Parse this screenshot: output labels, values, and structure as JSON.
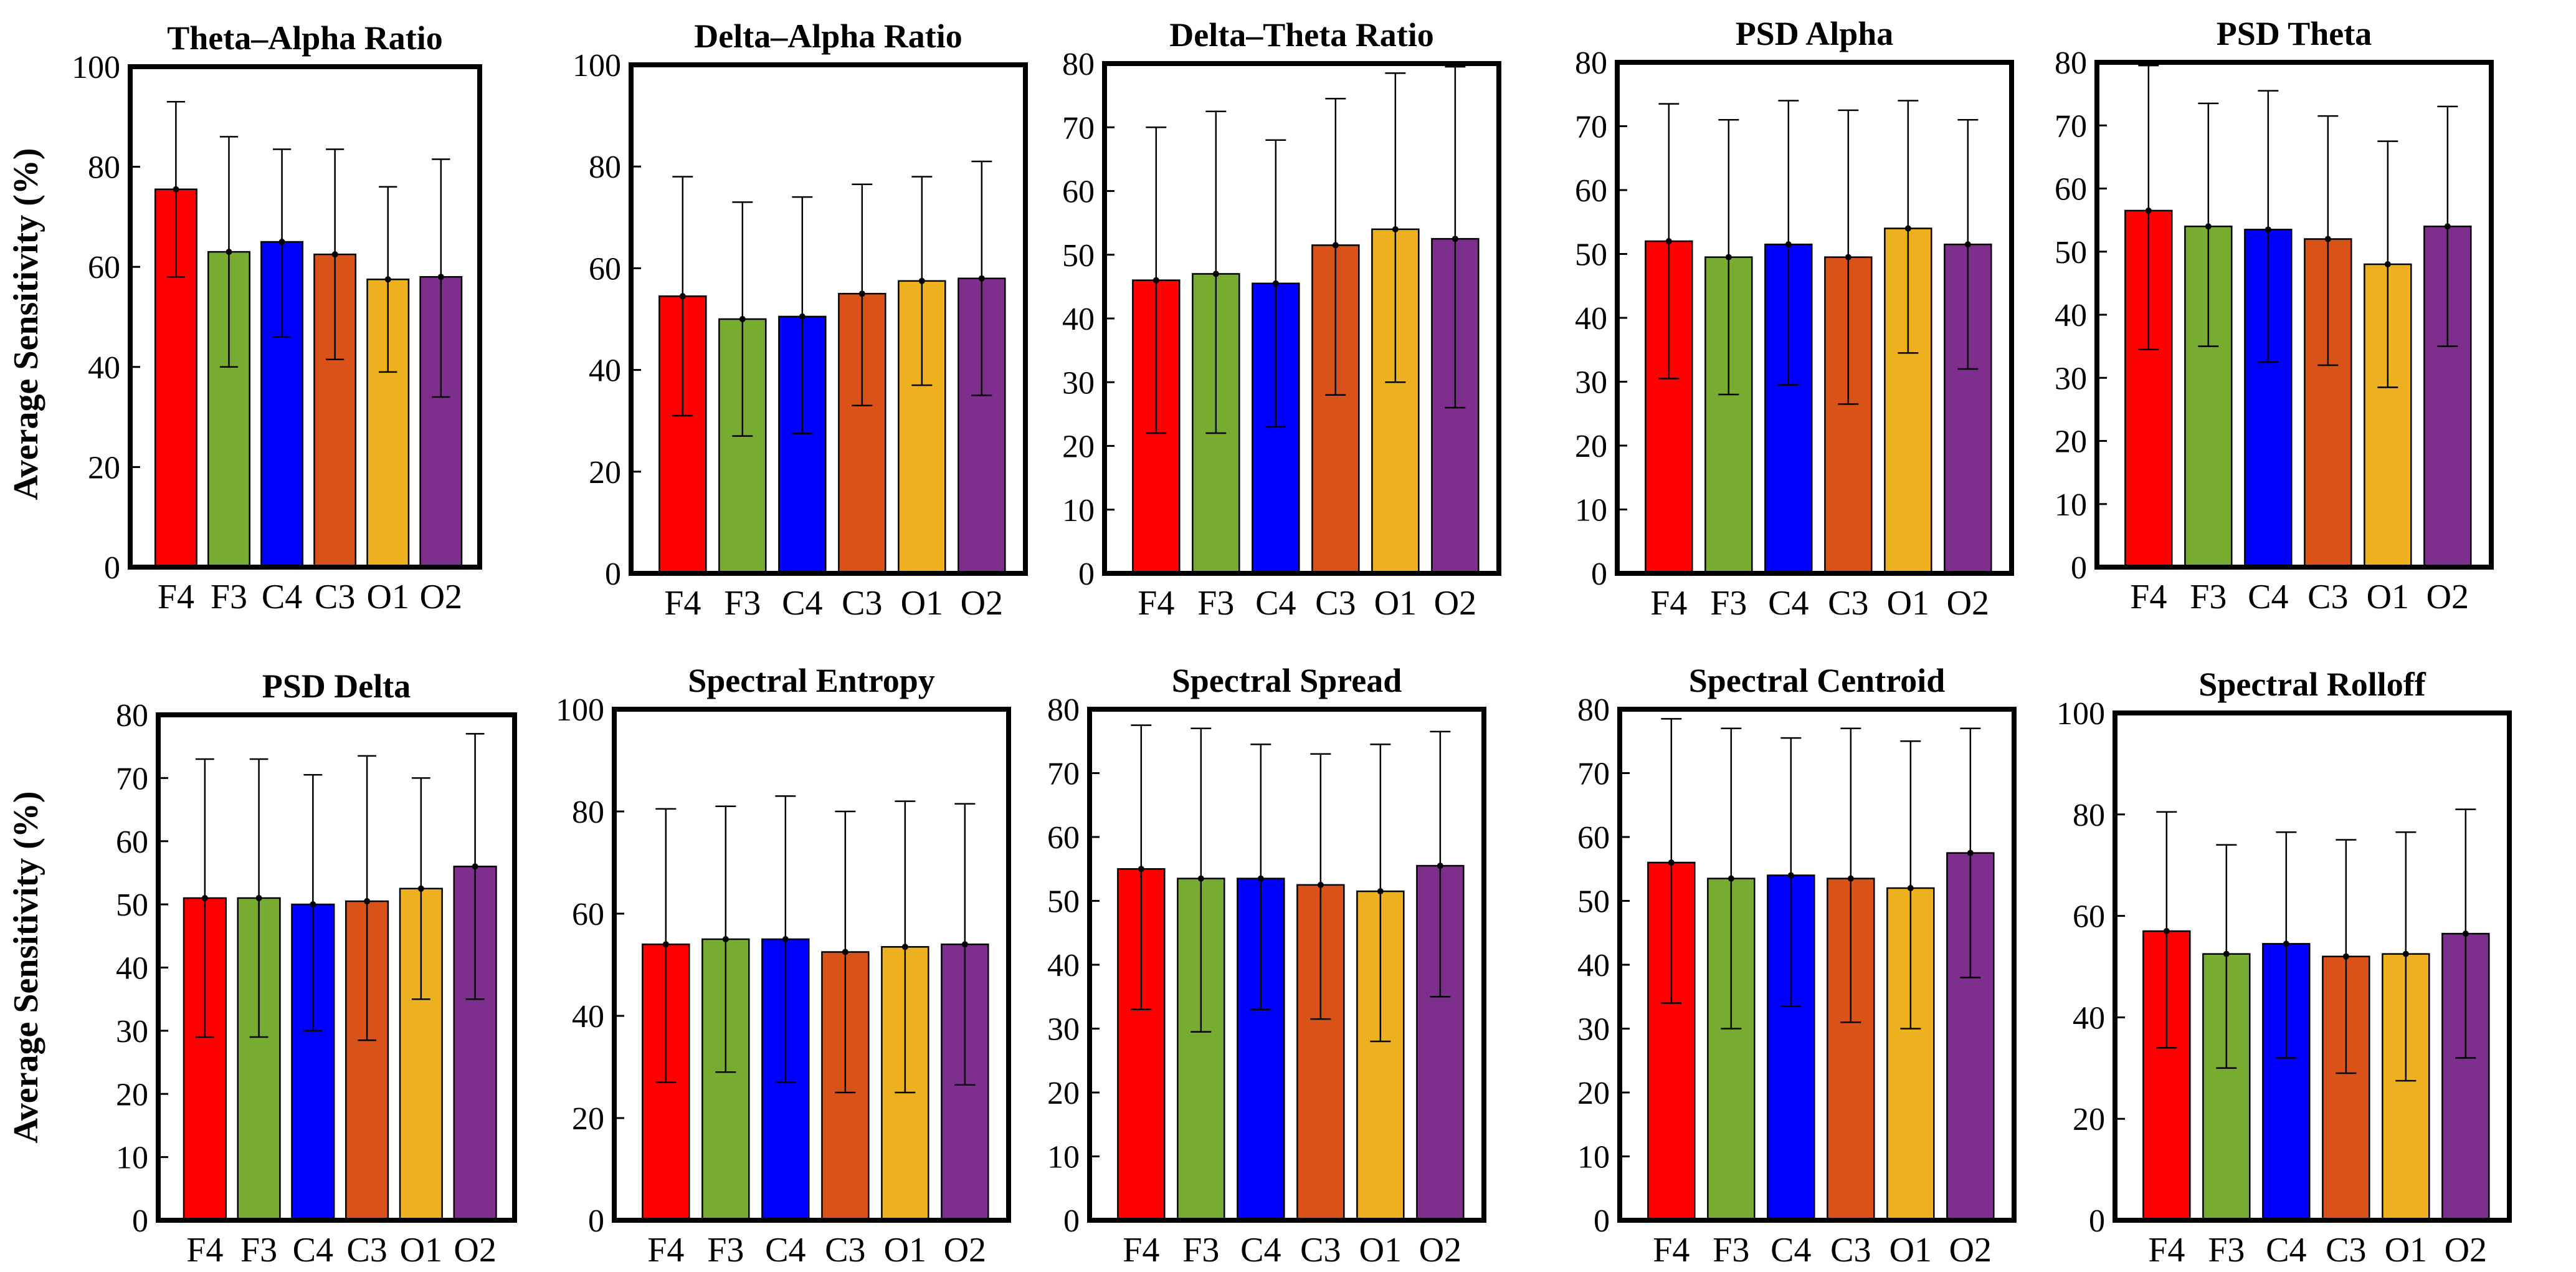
{
  "figure": {
    "y_axis_label": "Average Sensitivity (%)"
  },
  "colors": {
    "F4": "#ff0000",
    "F3": "#77ac30",
    "C4": "#0000ff",
    "C3": "#d95319",
    "O1": "#edb120",
    "O2": "#7e2f8e"
  },
  "chart_data": [
    {
      "type": "bar",
      "title": "Theta–Alpha Ratio",
      "categories": [
        "F4",
        "F3",
        "C4",
        "C3",
        "O1",
        "O2"
      ],
      "values": [
        75.5,
        63,
        65,
        62.5,
        57.5,
        58
      ],
      "error_low": [
        58,
        40,
        46,
        41.5,
        39,
        34
      ],
      "error_high": [
        93,
        86,
        83.5,
        83.5,
        76,
        81.5
      ],
      "ylim": [
        0,
        100
      ],
      "yticks": [
        0,
        20,
        40,
        60,
        80,
        100
      ],
      "ylabel": "Average Sensitivity (%)"
    },
    {
      "type": "bar",
      "title": "Delta–Alpha Ratio",
      "categories": [
        "F4",
        "F3",
        "C4",
        "C3",
        "O1",
        "O2"
      ],
      "values": [
        54.5,
        50,
        50.5,
        55,
        57.5,
        58
      ],
      "error_low": [
        31,
        27,
        27.5,
        33,
        37,
        35
      ],
      "error_high": [
        78,
        73,
        74,
        76.5,
        78,
        81
      ],
      "ylim": [
        0,
        100
      ],
      "yticks": [
        0,
        20,
        40,
        60,
        80,
        100
      ],
      "ylabel": ""
    },
    {
      "type": "bar",
      "title": "Delta–Theta Ratio",
      "categories": [
        "F4",
        "F3",
        "C4",
        "C3",
        "O1",
        "O2"
      ],
      "values": [
        46,
        47,
        45.5,
        51.5,
        54,
        52.5
      ],
      "error_low": [
        22,
        22,
        23,
        28,
        30,
        26
      ],
      "error_high": [
        70,
        72.5,
        68,
        74.5,
        78.5,
        79.5
      ],
      "ylim": [
        0,
        80
      ],
      "yticks": [
        0,
        10,
        20,
        30,
        40,
        50,
        60,
        70,
        80
      ],
      "ylabel": ""
    },
    {
      "type": "bar",
      "title": "PSD Alpha",
      "categories": [
        "F4",
        "F3",
        "C4",
        "C3",
        "O1",
        "O2"
      ],
      "values": [
        52,
        49.5,
        51.5,
        49.5,
        54,
        51.5
      ],
      "error_low": [
        30.5,
        28,
        29.5,
        26.5,
        34.5,
        32
      ],
      "error_high": [
        73.5,
        71,
        74,
        72.5,
        74,
        71
      ],
      "ylim": [
        0,
        80
      ],
      "yticks": [
        0,
        10,
        20,
        30,
        40,
        50,
        60,
        70,
        80
      ],
      "ylabel": ""
    },
    {
      "type": "bar",
      "title": "PSD Theta",
      "categories": [
        "F4",
        "F3",
        "C4",
        "C3",
        "O1",
        "O2"
      ],
      "values": [
        56.5,
        54,
        53.5,
        52,
        48,
        54
      ],
      "error_low": [
        34.5,
        35,
        32.5,
        32,
        28.5,
        35
      ],
      "error_high": [
        79.5,
        73.5,
        75.5,
        71.5,
        67.5,
        73
      ],
      "ylim": [
        0,
        80
      ],
      "yticks": [
        0,
        10,
        20,
        30,
        40,
        50,
        60,
        70,
        80
      ],
      "ylabel": ""
    },
    {
      "type": "bar",
      "title": "PSD Delta",
      "categories": [
        "F4",
        "F3",
        "C4",
        "C3",
        "O1",
        "O2"
      ],
      "values": [
        51,
        51,
        50,
        50.5,
        52.5,
        56
      ],
      "error_low": [
        29,
        29,
        30,
        28.5,
        35,
        35
      ],
      "error_high": [
        73,
        73,
        70.5,
        73.5,
        70,
        77
      ],
      "ylim": [
        0,
        80
      ],
      "yticks": [
        0,
        10,
        20,
        30,
        40,
        50,
        60,
        70,
        80
      ],
      "ylabel": "Average Sensitivity (%)"
    },
    {
      "type": "bar",
      "title": "Spectral Entropy",
      "categories": [
        "F4",
        "F3",
        "C4",
        "C3",
        "O1",
        "O2"
      ],
      "values": [
        54,
        55,
        55,
        52.5,
        53.5,
        54
      ],
      "error_low": [
        27,
        29,
        27,
        25,
        25,
        26.5
      ],
      "error_high": [
        80.5,
        81,
        83,
        80,
        82,
        81.5
      ],
      "ylim": [
        0,
        100
      ],
      "yticks": [
        0,
        20,
        40,
        60,
        80,
        100
      ],
      "ylabel": ""
    },
    {
      "type": "bar",
      "title": "Spectral Spread",
      "categories": [
        "F4",
        "F3",
        "C4",
        "C3",
        "O1",
        "O2"
      ],
      "values": [
        55,
        53.5,
        53.5,
        52.5,
        51.5,
        55.5
      ],
      "error_low": [
        33,
        29.5,
        33,
        31.5,
        28,
        35
      ],
      "error_high": [
        77.5,
        77,
        74.5,
        73,
        74.5,
        76.5
      ],
      "ylim": [
        0,
        80
      ],
      "yticks": [
        0,
        10,
        20,
        30,
        40,
        50,
        60,
        70,
        80
      ],
      "ylabel": ""
    },
    {
      "type": "bar",
      "title": "Spectral Centroid",
      "categories": [
        "F4",
        "F3",
        "C4",
        "C3",
        "O1",
        "O2"
      ],
      "values": [
        56,
        53.5,
        54,
        53.5,
        52,
        57.5
      ],
      "error_low": [
        34,
        30,
        33.5,
        31,
        30,
        38
      ],
      "error_high": [
        78.5,
        77,
        75.5,
        77,
        75,
        77
      ],
      "ylim": [
        0,
        80
      ],
      "yticks": [
        0,
        10,
        20,
        30,
        40,
        50,
        60,
        70,
        80
      ],
      "ylabel": ""
    },
    {
      "type": "bar",
      "title": "Spectral Rolloff",
      "categories": [
        "F4",
        "F3",
        "C4",
        "C3",
        "O1",
        "O2"
      ],
      "values": [
        57,
        52.5,
        54.5,
        52,
        52.5,
        56.5
      ],
      "error_low": [
        34,
        30,
        32,
        29,
        27.5,
        32
      ],
      "error_high": [
        80.5,
        74,
        76.5,
        75,
        76.5,
        81
      ],
      "ylim": [
        0,
        100
      ],
      "yticks": [
        0,
        20,
        40,
        60,
        80,
        100
      ],
      "ylabel": ""
    }
  ]
}
